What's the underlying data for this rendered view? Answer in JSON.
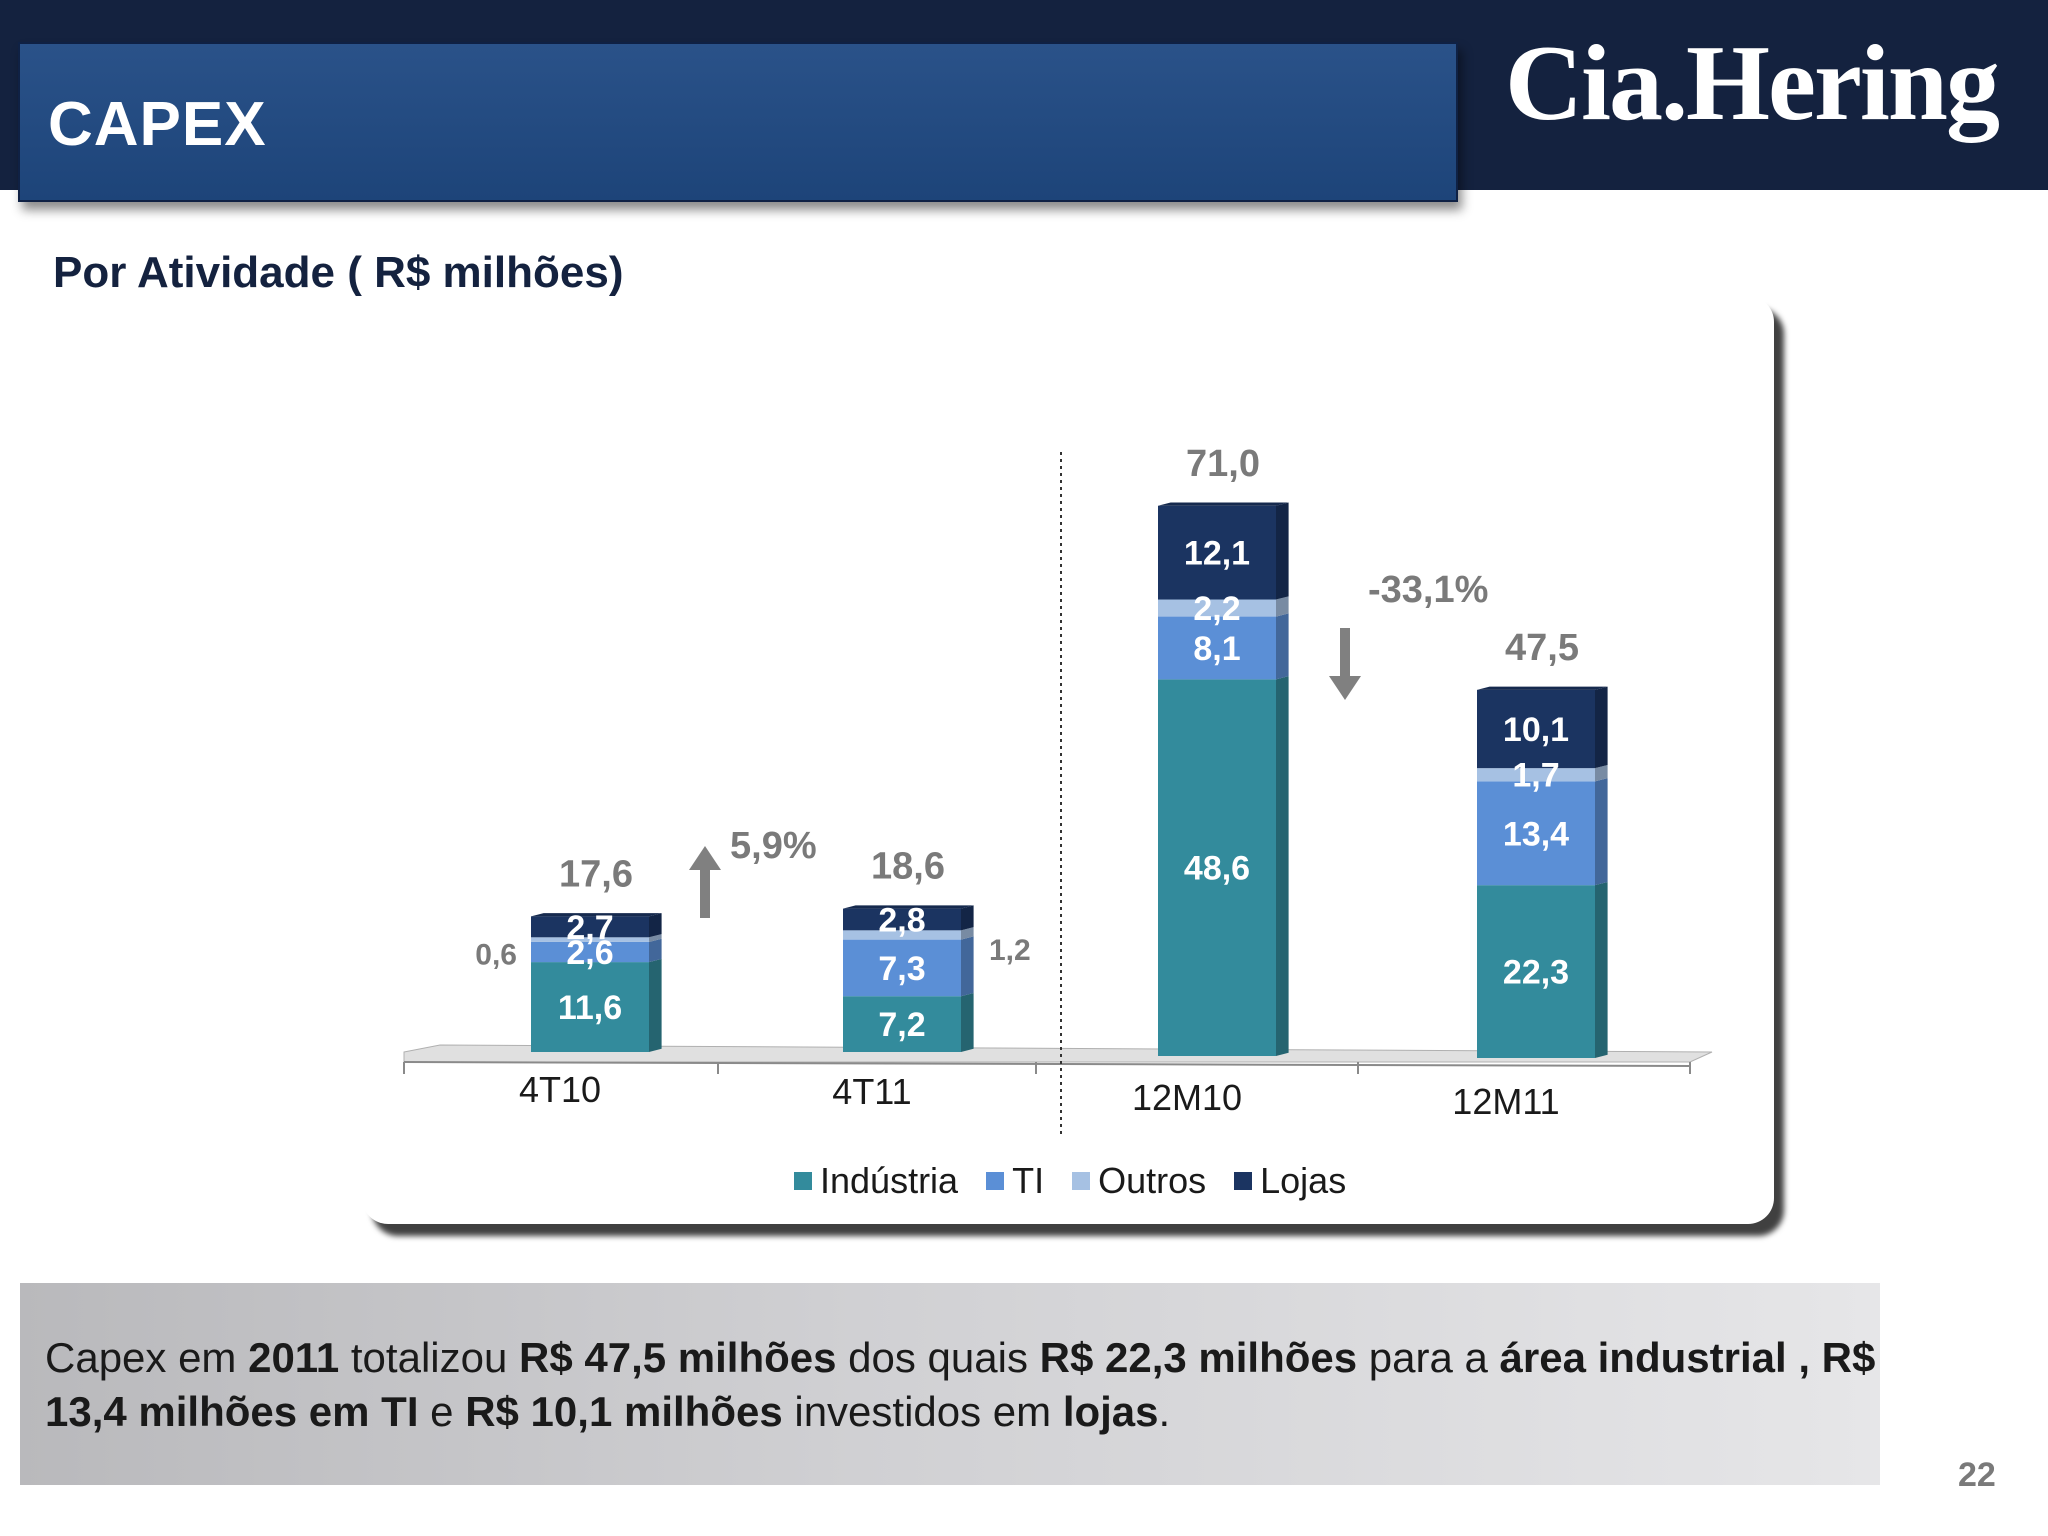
{
  "slide": {
    "title": "CAPEX",
    "logo_text": "Cia.Hering",
    "subtitle": "Por Atividade ( R$ milhões)",
    "page_number": "22"
  },
  "colors": {
    "top_band": "#14223f",
    "title_box": "#1d4479",
    "industria": "#338b9c",
    "ti": "#5b8fd6",
    "outros": "#a6c1e3",
    "lojas": "#1b3461",
    "total_label": "#7a7a7a",
    "arrow": "#808080"
  },
  "chart_data": {
    "type": "bar",
    "stacked": true,
    "categories": [
      "4T10",
      "4T11",
      "12M10",
      "12M11"
    ],
    "series": [
      {
        "name": "Indústria",
        "values": [
          11.6,
          7.2,
          48.6,
          22.3
        ],
        "labels": [
          "11,6",
          "7,2",
          "48,6",
          "22,3"
        ]
      },
      {
        "name": "TI",
        "values": [
          2.6,
          7.3,
          8.1,
          13.4
        ],
        "labels": [
          "2,6",
          "7,3",
          "8,1",
          "13,4"
        ]
      },
      {
        "name": "Outros",
        "values": [
          0.6,
          1.2,
          2.2,
          1.7
        ],
        "labels": [
          "0,6",
          "1,2",
          "2,2",
          "1,7"
        ]
      },
      {
        "name": "Lojas",
        "values": [
          2.7,
          2.8,
          12.1,
          10.1
        ],
        "labels": [
          "2,7",
          "2,8",
          "12,1",
          "10,1"
        ]
      }
    ],
    "totals": [
      17.6,
      18.6,
      71.0,
      47.5
    ],
    "total_labels": [
      "17,6",
      "18,6",
      "71,0",
      "47,5"
    ],
    "annotations": [
      {
        "text": "5,9%",
        "direction": "up",
        "between": [
          "4T10",
          "4T11"
        ]
      },
      {
        "text": "-33,1%",
        "direction": "down",
        "between": [
          "12M10",
          "12M11"
        ]
      }
    ],
    "legend_position": "bottom",
    "grid": false
  },
  "note": {
    "parts": [
      {
        "text": "Capex em ",
        "bold": false
      },
      {
        "text": "2011",
        "bold": true
      },
      {
        "text": " totalizou ",
        "bold": false
      },
      {
        "text": "R$ 47,5 milhões",
        "bold": true
      },
      {
        "text": " dos quais ",
        "bold": false
      },
      {
        "text": "R$ 22,3 milhões",
        "bold": true
      },
      {
        "text": " para a ",
        "bold": false
      },
      {
        "text": "área industrial , R$ 13,4 milhões em TI",
        "bold": true
      },
      {
        "text": " e ",
        "bold": false
      },
      {
        "text": "R$ 10,1 milhões",
        "bold": true
      },
      {
        "text": " investidos em ",
        "bold": false
      },
      {
        "text": "lojas",
        "bold": true
      },
      {
        "text": ".",
        "bold": false
      }
    ]
  }
}
